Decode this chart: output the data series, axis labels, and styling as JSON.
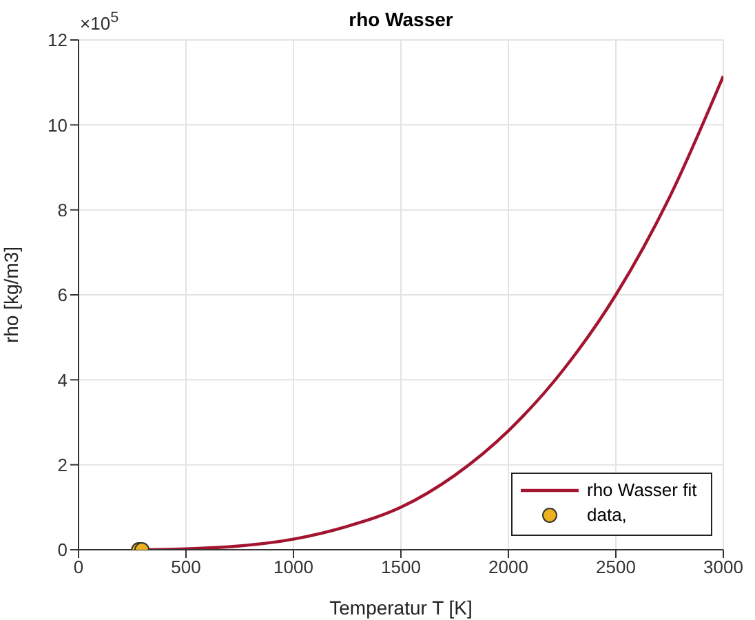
{
  "chart_data": {
    "type": "line",
    "title": "rho Wasser",
    "xlabel": "Temperatur T [K]",
    "ylabel": "rho [kg/m3]",
    "annotations": [
      "×10$^{5}$"
    ],
    "xlim": [
      0,
      3000
    ],
    "xticks": [
      0,
      500,
      1000,
      1500,
      2000,
      2500,
      3000
    ],
    "ylim": [
      0,
      12
    ],
    "yticks": [
      0,
      2,
      4,
      6,
      8,
      10,
      12
    ],
    "grid": true,
    "legend": "bottom right",
    "series": [
      {
        "name": "rho Wasser fit",
        "color": "#a2142f",
        "marker": "none",
        "line_style": "solid",
        "x": [
          290,
          500,
          750,
          1000,
          1250,
          1500,
          1750,
          2000,
          2250,
          2500,
          2750,
          3000
        ],
        "values": [
          0,
          0.02,
          0.09,
          0.25,
          0.55,
          1.0,
          1.75,
          2.8,
          4.2,
          6.0,
          8.3,
          11.15
        ]
      },
      {
        "name": "data,",
        "type": "scatter",
        "color": "#edb120",
        "marker": "circle",
        "x": [
          280,
          295
        ],
        "values": [
          0,
          0
        ]
      }
    ]
  }
}
